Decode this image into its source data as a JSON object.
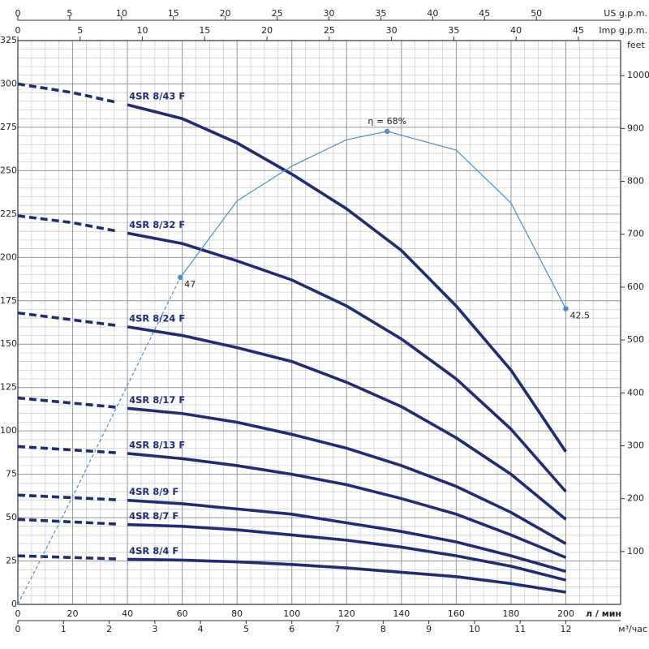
{
  "chart_data": {
    "type": "line",
    "xlabel": "л / мин",
    "xlim": [
      0,
      220
    ],
    "xticks": [
      0,
      20,
      40,
      60,
      80,
      100,
      120,
      140,
      160,
      180,
      200
    ],
    "ylim": [
      0,
      325
    ],
    "yticks": [
      0,
      25,
      50,
      75,
      100,
      125,
      150,
      175,
      200,
      225,
      250,
      275,
      300,
      325
    ],
    "y2label": "feet",
    "y2lim": [
      0,
      1066.3
    ],
    "y2ticks": [
      100,
      200,
      300,
      400,
      500,
      600,
      700,
      800,
      900,
      1000
    ],
    "y3lim": [
      0,
      81.05
    ],
    "top_axes": [
      {
        "label": "US g.p.m.",
        "lim": [
          0,
          58.12
        ],
        "ticks": [
          0,
          5,
          10,
          15,
          20,
          25,
          30,
          35,
          40,
          45,
          50
        ]
      },
      {
        "label": "Imp g.p.m.",
        "lim": [
          0,
          48.39
        ],
        "ticks": [
          0,
          5,
          10,
          15,
          20,
          25,
          30,
          35,
          40,
          45
        ]
      }
    ],
    "bottom_axis2": {
      "label": "м³/час",
      "lim": [
        0,
        13.2
      ],
      "ticks": [
        0,
        1,
        2,
        3,
        4,
        5,
        6,
        7,
        8,
        9,
        10,
        11,
        12
      ]
    },
    "grid": true,
    "minor_grid_step": [
      5,
      5
    ],
    "x": [
      0,
      20,
      40,
      60,
      80,
      100,
      120,
      140,
      160,
      180,
      200
    ],
    "series": [
      {
        "name": "4SR 8/43 F",
        "color": "#1f2d78",
        "dashed_until": 40,
        "values": [
          300,
          295,
          288,
          280,
          266,
          248,
          228,
          204,
          172,
          135,
          88
        ]
      },
      {
        "name": "4SR 8/32 F",
        "color": "#1f2d78",
        "dashed_until": 40,
        "values": [
          224,
          220,
          214,
          208,
          198,
          187,
          172,
          153,
          130,
          101,
          65
        ]
      },
      {
        "name": "4SR 8/24 F",
        "color": "#1f2d78",
        "dashed_until": 40,
        "values": [
          168,
          164,
          160,
          155,
          148,
          140,
          128,
          114,
          96,
          75,
          49
        ]
      },
      {
        "name": "4SR 8/17 F",
        "color": "#1f2d78",
        "dashed_until": 40,
        "values": [
          119,
          116,
          113,
          110,
          105,
          98,
          90,
          80,
          68,
          53,
          35
        ]
      },
      {
        "name": "4SR 8/13 F",
        "color": "#1f2d78",
        "dashed_until": 40,
        "values": [
          91,
          89,
          87,
          84,
          80,
          75,
          69,
          61,
          52,
          40,
          27
        ]
      },
      {
        "name": "4SR 8/9 F",
        "color": "#1f2d78",
        "dashed_until": 40,
        "values": [
          63,
          61.5,
          60,
          58,
          55,
          52,
          47,
          42,
          36,
          28,
          19
        ]
      },
      {
        "name": "4SR 8/7 F",
        "color": "#1f2d78",
        "dashed_until": 40,
        "values": [
          49,
          47.5,
          46,
          45,
          43,
          40,
          37,
          33,
          28,
          22,
          14
        ]
      },
      {
        "name": "4SR 8/4 F",
        "color": "#1f2d78",
        "dashed_until": 40,
        "values": [
          28,
          27,
          26,
          25.5,
          24.5,
          23,
          21,
          18.5,
          16,
          12,
          7
        ]
      },
      {
        "axis": "y3",
        "color": "#4a8fd0",
        "dashed_until": 59.3,
        "x": [
          0,
          20,
          40,
          59.3,
          80,
          100,
          120,
          134.8,
          160,
          180,
          200
        ],
        "values": [
          0,
          15.5,
          31.5,
          47,
          58,
          63,
          66.8,
          68,
          65.3,
          57.7,
          42.5
        ],
        "value_labels": [
          null,
          null,
          null,
          "47",
          null,
          null,
          null,
          "η = 68%",
          null,
          null,
          "42.5"
        ]
      }
    ]
  }
}
